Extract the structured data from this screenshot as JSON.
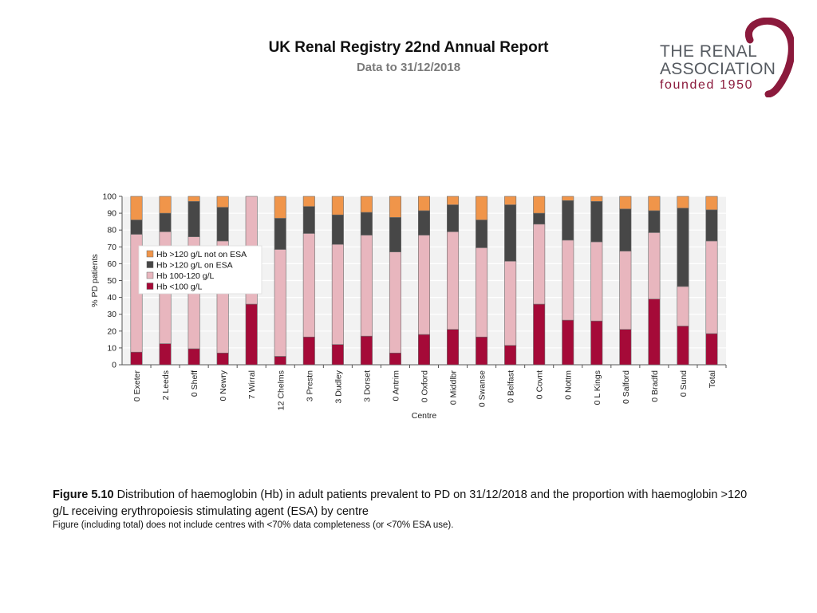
{
  "header": {
    "title": "UK Renal Registry 22nd Annual Report",
    "subtitle": "Data to 31/12/2018"
  },
  "logo": {
    "line1": "THE RENAL",
    "line2": "ASSOCIATION",
    "line3": "founded 1950"
  },
  "caption": {
    "figure_label": "Figure 5.10",
    "text": " Distribution of haemoglobin (Hb) in adult patients prevalent to PD on 31/12/2018 and the proportion with haemoglobin >120 g/L receiving  erythropoiesis stimulating agent (ESA) by centre",
    "note": "Figure (including total) does not include centres with <70% data completeness (or <70% ESA use)."
  },
  "chart_data": {
    "type": "bar",
    "stacked": true,
    "ylabel": "% PD patients",
    "xlabel": "Centre",
    "ylim": [
      0,
      100
    ],
    "yticks": [
      0,
      10,
      20,
      30,
      40,
      50,
      60,
      70,
      80,
      90,
      100
    ],
    "grid": true,
    "legend_position": "top-left",
    "categories": [
      "0 Exeter",
      "2 Leeds",
      "0 Sheff",
      "0 Newry",
      "7 Wirral",
      "12 Chelms",
      "3 Prestn",
      "3 Dudley",
      "3 Dorset",
      "0 Antrim",
      "0 Oxford",
      "0 Middlbr",
      "0 Swanse",
      "0 Belfast",
      "0 Covnt",
      "0 Nottm",
      "0 L Kings",
      "0 Salford",
      "0 Bradfd",
      "0 Sund",
      "Total"
    ],
    "series": [
      {
        "name": "Hb <100 g/L",
        "color": "#a50a38",
        "values": [
          7.5,
          12.5,
          9.5,
          7,
          36,
          5,
          16.5,
          12,
          17,
          7,
          18,
          21,
          16.5,
          11.5,
          36,
          26.5,
          26,
          21,
          39,
          23,
          18.5
        ]
      },
      {
        "name": "Hb 100-120 g/L",
        "color": "#e8b6be",
        "values": [
          70,
          66.5,
          66.5,
          66.5,
          64,
          63.5,
          61.5,
          59.5,
          60,
          60,
          59,
          58,
          53,
          50,
          47.5,
          47.5,
          47,
          46.5,
          39.5,
          23.5,
          55
        ]
      },
      {
        "name": "Hb >120 g/L on ESA",
        "color": "#474747",
        "values": [
          8.5,
          11,
          21,
          20,
          0,
          18.5,
          16,
          17.5,
          13.5,
          20.5,
          14.5,
          16,
          16.5,
          33.5,
          6.5,
          23.5,
          24,
          25,
          13,
          46.5,
          18.5
        ]
      },
      {
        "name": "Hb >120 g/L not on ESA",
        "color": "#f0954a",
        "values": [
          14,
          10,
          3,
          6.5,
          0,
          13,
          6,
          11,
          9.5,
          12.5,
          8.5,
          5,
          14,
          5,
          10,
          2.5,
          3,
          7.5,
          8.5,
          7,
          8
        ]
      }
    ],
    "legend_order": [
      "Hb >120 g/L not on ESA",
      "Hb >120 g/L on ESA",
      "Hb 100-120 g/L",
      "Hb <100 g/L"
    ]
  }
}
